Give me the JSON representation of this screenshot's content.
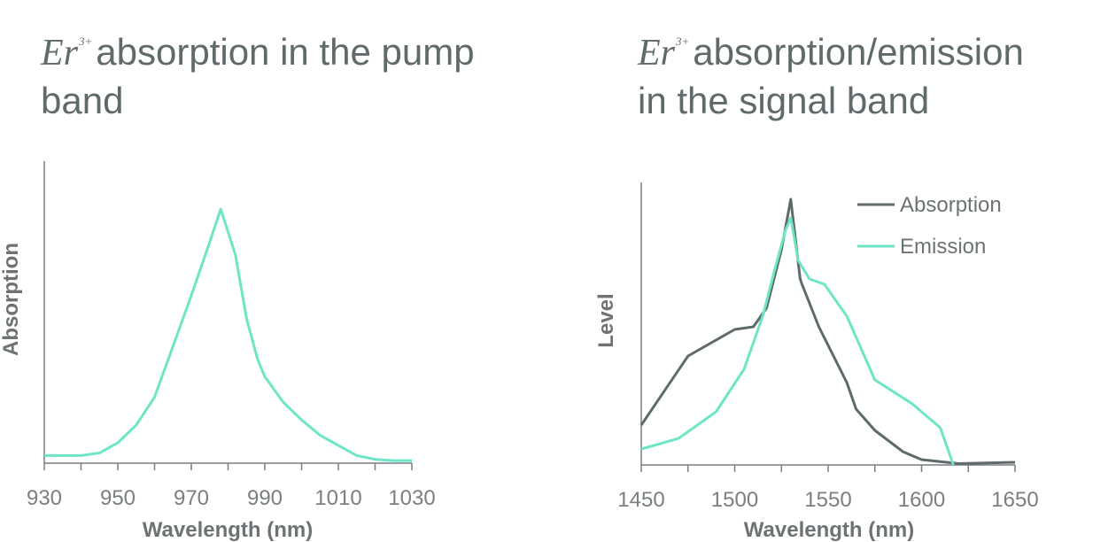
{
  "chart_data": [
    {
      "type": "line",
      "title": {
        "species": "Er",
        "superscript": "3+",
        "text_line1": "absorption in the pump",
        "text_line2": "band"
      },
      "xlabel": "Wavelength (nm)",
      "ylabel": "Absorption",
      "xlim": [
        930,
        1030
      ],
      "xticks": [
        "930",
        "950",
        "970",
        "990",
        "1010",
        "1030"
      ],
      "y_ticks_labeled": false,
      "color": "#6ee6c6",
      "series": [
        {
          "color": "#6ee6c6",
          "x": [
            930,
            940,
            945,
            950,
            955,
            960,
            965,
            970,
            975,
            978,
            982,
            985,
            988,
            990,
            995,
            1000,
            1005,
            1010,
            1015,
            1020,
            1025,
            1030
          ],
          "y": [
            0.03,
            0.03,
            0.04,
            0.08,
            0.15,
            0.26,
            0.46,
            0.66,
            0.87,
            1.0,
            0.82,
            0.57,
            0.41,
            0.34,
            0.24,
            0.17,
            0.11,
            0.07,
            0.03,
            0.015,
            0.01,
            0.01
          ]
        }
      ]
    },
    {
      "type": "line",
      "title": {
        "species": "Er",
        "superscript": "3+",
        "text_line1": "absorption/emission",
        "text_line2": "in the signal band"
      },
      "xlabel": "Wavelength (nm)",
      "ylabel": "Level",
      "xlim": [
        1450,
        1650
      ],
      "xticks": [
        "1450",
        "1500",
        "1550",
        "1600",
        "1650"
      ],
      "y_ticks_labeled": false,
      "legend_position": "top-right",
      "series": [
        {
          "name": "Absorption",
          "color": "#5f6a6a",
          "x": [
            1450,
            1475,
            1500,
            1510,
            1517,
            1525,
            1530,
            1535,
            1536,
            1545,
            1560,
            1565,
            1575,
            1590,
            1600,
            1620,
            1650
          ],
          "y": [
            0.15,
            0.41,
            0.51,
            0.52,
            0.59,
            0.81,
            1.0,
            0.7,
            0.68,
            0.52,
            0.31,
            0.21,
            0.13,
            0.05,
            0.02,
            0.005,
            0.01
          ]
        },
        {
          "name": "Emission",
          "color": "#6ee6c6",
          "x": [
            1450,
            1470,
            1490,
            1505,
            1515,
            1522,
            1527,
            1530,
            1534,
            1540,
            1548,
            1560,
            1575,
            1595,
            1610,
            1617
          ],
          "y": [
            0.06,
            0.1,
            0.2,
            0.36,
            0.56,
            0.75,
            0.88,
            0.93,
            0.77,
            0.7,
            0.68,
            0.56,
            0.32,
            0.23,
            0.14,
            0.0
          ]
        }
      ]
    }
  ]
}
